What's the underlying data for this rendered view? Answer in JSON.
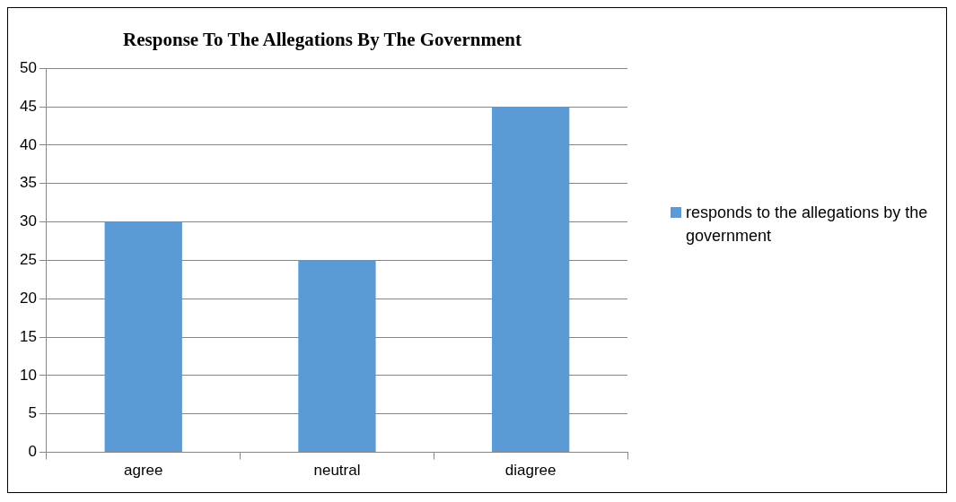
{
  "chart_data": {
    "type": "bar",
    "title": "Response To The Allegations By The Government",
    "categories": [
      "agree",
      "neutral",
      "diagree"
    ],
    "series": [
      {
        "name": "responds to the allegations by the government",
        "color": "#5b9bd5",
        "values": [
          30,
          25,
          45
        ]
      }
    ],
    "ylim": [
      0,
      50
    ],
    "yticks": [
      0,
      5,
      10,
      15,
      20,
      25,
      30,
      35,
      40,
      45,
      50
    ],
    "grid": "y",
    "legend": "right"
  }
}
